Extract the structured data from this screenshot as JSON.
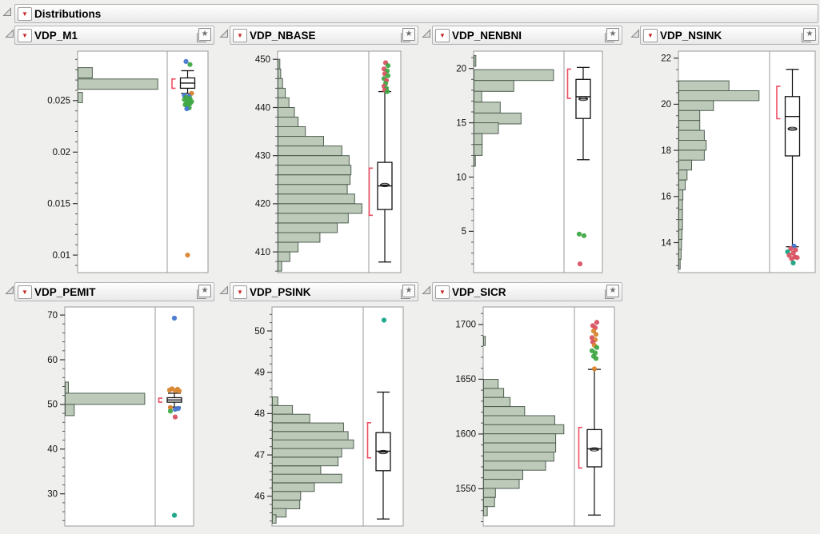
{
  "app": {
    "title": "Distributions"
  },
  "style": {
    "histogram_fill": "#bdcaba",
    "histogram_stroke": "#4e5e50",
    "bracket_color": "#ee4f63",
    "box_stroke": "#111111",
    "marker_colors": {
      "blue": "#4477d1",
      "green": "#3fa845",
      "red": "#d95262",
      "orange": "#d8862f",
      "teal": "#17a384"
    }
  },
  "chart_data": [
    {
      "type": "bar",
      "subtype": "histogram_with_outlier_boxplot",
      "title": "VDP_M1",
      "orientation": "horizontal",
      "axis": {
        "min": 0.0083,
        "max": 0.0298,
        "majors": [
          0.025,
          0.02,
          0.015,
          0.01
        ],
        "tick_labels": [
          "0.025",
          "0.02",
          "0.015",
          "0.01"
        ],
        "minor_step": 0.001
      },
      "bin_width": 0.001,
      "bars": [
        {
          "v": 0.0277,
          "f": 0.16
        },
        {
          "v": 0.0266,
          "f": 0.89
        },
        {
          "v": 0.0253,
          "f": 0.05
        }
      ],
      "box": {
        "whisker_low": 0.0257,
        "q1": 0.0262,
        "median": 0.0267,
        "q3": 0.0272,
        "whisker_high": 0.0279,
        "mean": null,
        "bracket": [
          0.0262,
          0.0271
        ]
      },
      "outliers": [
        {
          "v": 0.0288,
          "c": "blue",
          "j": -2
        },
        {
          "v": 0.0285,
          "c": "green",
          "j": 3
        },
        {
          "v": 0.0257,
          "c": "orange",
          "j": 5
        },
        {
          "v": 0.0255,
          "c": "blue",
          "j": -4
        },
        {
          "v": 0.0254,
          "c": "blue",
          "j": 2
        },
        {
          "v": 0.0253,
          "c": "green",
          "j": -2
        },
        {
          "v": 0.0252,
          "c": "green",
          "j": 3
        },
        {
          "v": 0.0251,
          "c": "green",
          "j": -4
        },
        {
          "v": 0.025,
          "c": "green",
          "j": 1
        },
        {
          "v": 0.0249,
          "c": "green",
          "j": 5
        },
        {
          "v": 0.0248,
          "c": "green",
          "j": -1
        },
        {
          "v": 0.0247,
          "c": "green",
          "j": 3
        },
        {
          "v": 0.0246,
          "c": "green",
          "j": -3
        },
        {
          "v": 0.0245,
          "c": "green",
          "j": 0
        },
        {
          "v": 0.0243,
          "c": "green",
          "j": 2
        },
        {
          "v": 0.0242,
          "c": "blue",
          "j": -1
        },
        {
          "v": 0.01,
          "c": "orange",
          "j": 0
        }
      ]
    },
    {
      "type": "bar",
      "subtype": "histogram_with_outlier_boxplot",
      "title": "VDP_NBASE",
      "orientation": "horizontal",
      "axis": {
        "min": 405.7,
        "max": 451.7,
        "majors": [
          450,
          440,
          430,
          420,
          410
        ],
        "tick_labels": [
          "450",
          "440",
          "430",
          "420",
          "410"
        ],
        "minor_step": 2
      },
      "bin_width": 2,
      "bars": [
        {
          "v": 449,
          "f": 0.02
        },
        {
          "v": 447,
          "f": 0.03
        },
        {
          "v": 445,
          "f": 0.05
        },
        {
          "v": 443,
          "f": 0.08
        },
        {
          "v": 441,
          "f": 0.12
        },
        {
          "v": 439,
          "f": 0.18
        },
        {
          "v": 437,
          "f": 0.22
        },
        {
          "v": 435,
          "f": 0.3
        },
        {
          "v": 433,
          "f": 0.5
        },
        {
          "v": 431,
          "f": 0.7
        },
        {
          "v": 429,
          "f": 0.78
        },
        {
          "v": 427,
          "f": 0.8
        },
        {
          "v": 425,
          "f": 0.79
        },
        {
          "v": 423,
          "f": 0.76
        },
        {
          "v": 421,
          "f": 0.84
        },
        {
          "v": 419,
          "f": 0.92
        },
        {
          "v": 417,
          "f": 0.77
        },
        {
          "v": 415,
          "f": 0.65
        },
        {
          "v": 413,
          "f": 0.46
        },
        {
          "v": 411,
          "f": 0.22
        },
        {
          "v": 409,
          "f": 0.13
        },
        {
          "v": 407,
          "f": 0.04
        }
      ],
      "box": {
        "whisker_low": 407.9,
        "q1": 418.8,
        "median": 423.7,
        "q3": 428.6,
        "whisker_high": 443.3,
        "mean": 423.9,
        "bracket": [
          417.6,
          427.4
        ]
      },
      "outliers": [
        {
          "v": 449.3,
          "c": "red",
          "j": 1
        },
        {
          "v": 448.7,
          "c": "green",
          "j": 4
        },
        {
          "v": 448.0,
          "c": "red",
          "j": -1
        },
        {
          "v": 447.6,
          "c": "green",
          "j": 3
        },
        {
          "v": 447.0,
          "c": "red",
          "j": 0
        },
        {
          "v": 446.6,
          "c": "green",
          "j": 4
        },
        {
          "v": 446.0,
          "c": "green",
          "j": -1
        },
        {
          "v": 445.6,
          "c": "red",
          "j": 2
        },
        {
          "v": 445.0,
          "c": "green",
          "j": 1
        },
        {
          "v": 444.4,
          "c": "red",
          "j": -1
        },
        {
          "v": 444.0,
          "c": "green",
          "j": 2
        },
        {
          "v": 443.6,
          "c": "red",
          "j": 0
        },
        {
          "v": 443.3,
          "c": "green",
          "j": 3
        }
      ]
    },
    {
      "type": "bar",
      "subtype": "histogram_with_outlier_boxplot",
      "title": "VDP_NENBNI",
      "orientation": "horizontal",
      "axis": {
        "min": 1.2,
        "max": 21.6,
        "majors": [
          20,
          15,
          10,
          5
        ],
        "tick_labels": [
          "20",
          "15",
          "10",
          "5"
        ],
        "minor_step": 1
      },
      "bin_width": 1,
      "bars": [
        {
          "v": 20.7,
          "f": 0.02
        },
        {
          "v": 19.4,
          "f": 0.88
        },
        {
          "v": 18.4,
          "f": 0.44
        },
        {
          "v": 17.4,
          "f": 0.085
        },
        {
          "v": 16.4,
          "f": 0.29
        },
        {
          "v": 15.4,
          "f": 0.52
        },
        {
          "v": 14.5,
          "f": 0.27
        },
        {
          "v": 13.5,
          "f": 0.09
        },
        {
          "v": 12.5,
          "f": 0.09
        },
        {
          "v": 11.5,
          "f": 0.015
        }
      ],
      "box": {
        "whisker_low": 11.6,
        "q1": 15.4,
        "median": 17.4,
        "q3": 19.0,
        "whisker_high": 20.1,
        "mean": 17.2,
        "bracket": [
          17.25,
          19.95
        ]
      },
      "outliers": [
        {
          "v": 4.75,
          "c": "green",
          "j": -5
        },
        {
          "v": 4.6,
          "c": "green",
          "j": 1
        },
        {
          "v": 2.0,
          "c": "red",
          "j": -4
        }
      ]
    },
    {
      "type": "bar",
      "subtype": "histogram_with_outlier_boxplot",
      "title": "VDP_NSINK",
      "orientation": "horizontal",
      "axis": {
        "min": 12.7,
        "max": 22.3,
        "majors": [
          22,
          20,
          18,
          16,
          14
        ],
        "tick_labels": [
          "22",
          "20",
          "18",
          "16",
          "14"
        ],
        "minor_step": 0.5
      },
      "bin_width": 0.43,
      "bars": [
        {
          "v": 20.8,
          "f": 0.55
        },
        {
          "v": 20.37,
          "f": 0.88
        },
        {
          "v": 19.94,
          "f": 0.38
        },
        {
          "v": 19.51,
          "f": 0.23
        },
        {
          "v": 19.08,
          "f": 0.23
        },
        {
          "v": 18.65,
          "f": 0.28
        },
        {
          "v": 18.22,
          "f": 0.3
        },
        {
          "v": 17.79,
          "f": 0.28
        },
        {
          "v": 17.36,
          "f": 0.14
        },
        {
          "v": 16.93,
          "f": 0.09
        },
        {
          "v": 16.5,
          "f": 0.07
        },
        {
          "v": 16.07,
          "f": 0.045
        },
        {
          "v": 15.64,
          "f": 0.04
        },
        {
          "v": 15.21,
          "f": 0.04
        },
        {
          "v": 14.78,
          "f": 0.04
        },
        {
          "v": 14.35,
          "f": 0.035
        },
        {
          "v": 13.92,
          "f": 0.03
        },
        {
          "v": 13.49,
          "f": 0.025
        },
        {
          "v": 13.06,
          "f": 0.015
        }
      ],
      "box": {
        "whisker_low": 13.82,
        "q1": 17.76,
        "median": 19.47,
        "q3": 20.33,
        "whisker_high": 21.51,
        "mean": 18.93,
        "bracket": [
          19.37,
          20.78
        ]
      },
      "outliers": [
        {
          "v": 13.85,
          "c": "blue",
          "j": 2
        },
        {
          "v": 13.74,
          "c": "red",
          "j": -2
        },
        {
          "v": 13.68,
          "c": "red",
          "j": 4
        },
        {
          "v": 13.6,
          "c": "teal",
          "j": -6
        },
        {
          "v": 13.55,
          "c": "red",
          "j": 1
        },
        {
          "v": 13.45,
          "c": "red",
          "j": -4
        },
        {
          "v": 13.38,
          "c": "red",
          "j": 3
        },
        {
          "v": 13.35,
          "c": "red",
          "j": 6
        },
        {
          "v": 13.3,
          "c": "red",
          "j": -1
        },
        {
          "v": 13.12,
          "c": "teal",
          "j": 1
        }
      ]
    },
    {
      "type": "bar",
      "subtype": "histogram_with_outlier_boxplot",
      "title": "VDP_PEMIT",
      "orientation": "horizontal",
      "axis": {
        "min": 22.8,
        "max": 71.8,
        "majors": [
          70,
          60,
          50,
          40,
          30
        ],
        "tick_labels": [
          "70",
          "60",
          "50",
          "40",
          "30"
        ],
        "minor_step": 2
      },
      "bin_width": 2.5,
      "bars": [
        {
          "v": 53.75,
          "f": 0.035
        },
        {
          "v": 51.25,
          "f": 0.88
        },
        {
          "v": 48.75,
          "f": 0.1
        }
      ],
      "box": {
        "whisker_low": 49.4,
        "q1": 50.5,
        "median": 51.0,
        "q3": 51.5,
        "whisker_high": 52.5,
        "mean": null,
        "bracket": [
          50.5,
          51.4
        ]
      },
      "outliers": [
        {
          "v": 69.3,
          "c": "blue",
          "j": 0
        },
        {
          "v": 53.5,
          "c": "orange",
          "j": -3
        },
        {
          "v": 53.4,
          "c": "orange",
          "j": 4
        },
        {
          "v": 53.2,
          "c": "orange",
          "j": -6
        },
        {
          "v": 53.1,
          "c": "orange",
          "j": 1
        },
        {
          "v": 53.0,
          "c": "orange",
          "j": 6
        },
        {
          "v": 49.3,
          "c": "orange",
          "j": -5
        },
        {
          "v": 49.1,
          "c": "blue",
          "j": 5
        },
        {
          "v": 48.9,
          "c": "blue",
          "j": 1
        },
        {
          "v": 48.5,
          "c": "green",
          "j": -5
        },
        {
          "v": 47.2,
          "c": "red",
          "j": 1
        },
        {
          "v": 25.2,
          "c": "teal",
          "j": 0
        }
      ]
    },
    {
      "type": "bar",
      "subtype": "histogram_with_outlier_boxplot",
      "title": "VDP_PSINK",
      "orientation": "horizontal",
      "axis": {
        "min": 45.28,
        "max": 50.58,
        "majors": [
          50,
          49,
          48,
          47,
          46
        ],
        "tick_labels": [
          "50",
          "49",
          "48",
          "47",
          "46"
        ],
        "minor_step": 0.2
      },
      "bin_width": 0.207,
      "bars": [
        {
          "v": 48.3,
          "f": 0.06
        },
        {
          "v": 48.09,
          "f": 0.22
        },
        {
          "v": 47.88,
          "f": 0.41
        },
        {
          "v": 47.67,
          "f": 0.78
        },
        {
          "v": 47.46,
          "f": 0.83
        },
        {
          "v": 47.26,
          "f": 0.89
        },
        {
          "v": 47.05,
          "f": 0.76
        },
        {
          "v": 46.84,
          "f": 0.72
        },
        {
          "v": 46.63,
          "f": 0.53
        },
        {
          "v": 46.43,
          "f": 0.76
        },
        {
          "v": 46.22,
          "f": 0.46
        },
        {
          "v": 46.01,
          "f": 0.31
        },
        {
          "v": 45.8,
          "f": 0.3
        },
        {
          "v": 45.6,
          "f": 0.15
        },
        {
          "v": 45.45,
          "f": 0.04
        }
      ],
      "box": {
        "whisker_low": 45.45,
        "q1": 46.62,
        "median": 47.09,
        "q3": 47.54,
        "whisker_high": 48.52,
        "mean": 47.07,
        "bracket": [
          46.93,
          47.78
        ]
      },
      "outliers": [
        {
          "v": 50.26,
          "c": "teal",
          "j": 1
        }
      ]
    },
    {
      "type": "bar",
      "subtype": "histogram_with_outlier_boxplot",
      "title": "VDP_SICR",
      "orientation": "horizontal",
      "axis": {
        "min": 1516,
        "max": 1716,
        "majors": [
          1700,
          1650,
          1600,
          1550
        ],
        "tick_labels": [
          "1700",
          "1650",
          "1600",
          "1550"
        ],
        "minor_step": 10
      },
      "bin_width": 8.3,
      "bars": [
        {
          "v": 1685,
          "f": 0.018
        },
        {
          "v": 1645.8,
          "f": 0.16
        },
        {
          "v": 1637.5,
          "f": 0.22
        },
        {
          "v": 1629.2,
          "f": 0.29
        },
        {
          "v": 1620.9,
          "f": 0.45
        },
        {
          "v": 1612.6,
          "f": 0.78
        },
        {
          "v": 1604.3,
          "f": 0.88
        },
        {
          "v": 1596,
          "f": 0.79
        },
        {
          "v": 1587.7,
          "f": 0.79
        },
        {
          "v": 1579.4,
          "f": 0.77
        },
        {
          "v": 1571.1,
          "f": 0.68
        },
        {
          "v": 1562.8,
          "f": 0.43
        },
        {
          "v": 1554.5,
          "f": 0.39
        },
        {
          "v": 1546.2,
          "f": 0.13
        },
        {
          "v": 1537.9,
          "f": 0.12
        },
        {
          "v": 1529.6,
          "f": 0.04
        }
      ],
      "box": {
        "whisker_low": 1526,
        "q1": 1570,
        "median": 1586.5,
        "q3": 1604,
        "whisker_high": 1659,
        "mean": 1586,
        "bracket": [
          1569,
          1606
        ]
      },
      "outliers": [
        {
          "v": 1702,
          "c": "red",
          "j": 3
        },
        {
          "v": 1699,
          "c": "red",
          "j": -2
        },
        {
          "v": 1697,
          "c": "red",
          "j": 1
        },
        {
          "v": 1694,
          "c": "orange",
          "j": -1
        },
        {
          "v": 1691,
          "c": "orange",
          "j": 2
        },
        {
          "v": 1688,
          "c": "red",
          "j": -3
        },
        {
          "v": 1686,
          "c": "orange",
          "j": 1
        },
        {
          "v": 1684,
          "c": "red",
          "j": -2
        },
        {
          "v": 1681,
          "c": "orange",
          "j": 0
        },
        {
          "v": 1679,
          "c": "green",
          "j": 3
        },
        {
          "v": 1676,
          "c": "green",
          "j": -3
        },
        {
          "v": 1674,
          "c": "green",
          "j": 1
        },
        {
          "v": 1671,
          "c": "green",
          "j": -1
        },
        {
          "v": 1669,
          "c": "green",
          "j": 2
        },
        {
          "v": 1659.5,
          "c": "orange",
          "j": 0
        }
      ]
    }
  ]
}
